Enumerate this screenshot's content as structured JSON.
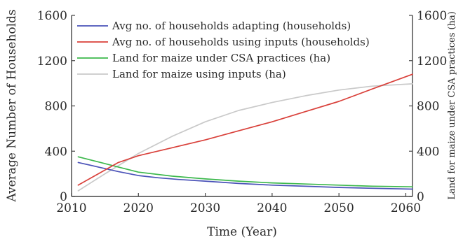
{
  "chart_data": {
    "type": "line",
    "xlabel": "Time (Year)",
    "ylabel_left": "Average Number of Households",
    "ylabel_right": "Land for maize under CSA practices (ha)",
    "xlim": [
      2010,
      2061
    ],
    "ylim_left": [
      0,
      1600
    ],
    "ylim_right": [
      0,
      1600
    ],
    "x_ticks": [
      2010,
      2020,
      2030,
      2040,
      2050,
      2060
    ],
    "y_ticks_left": [
      0,
      400,
      800,
      1200,
      1600
    ],
    "y_ticks_right": [
      0,
      400,
      800,
      1200,
      1600
    ],
    "grid": false,
    "legend_position": "top-left",
    "series": [
      {
        "name": "Avg no. of households adapting (households)",
        "color": "#4a52b8",
        "axis": "left",
        "x": [
          2011,
          2014,
          2017,
          2020,
          2023,
          2026,
          2030,
          2035,
          2040,
          2045,
          2050,
          2055,
          2061
        ],
        "y": [
          300,
          260,
          220,
          185,
          165,
          150,
          135,
          115,
          100,
          90,
          80,
          72,
          65
        ]
      },
      {
        "name": "Avg no. of households using inputs (households)",
        "color": "#d9403a",
        "axis": "left",
        "x": [
          2011,
          2014,
          2017,
          2020,
          2025,
          2030,
          2035,
          2040,
          2045,
          2050,
          2055,
          2061
        ],
        "y": [
          100,
          200,
          300,
          360,
          430,
          500,
          580,
          660,
          750,
          840,
          950,
          1080
        ]
      },
      {
        "name": "Land for maize under CSA practices (ha)",
        "color": "#3cb84c",
        "axis": "right",
        "x": [
          2011,
          2014,
          2017,
          2020,
          2025,
          2030,
          2035,
          2040,
          2045,
          2050,
          2055,
          2061
        ],
        "y": [
          350,
          305,
          260,
          215,
          180,
          155,
          135,
          120,
          110,
          100,
          90,
          85
        ]
      },
      {
        "name": "Land for maize using inputs (ha)",
        "color": "#c9c9c9",
        "axis": "right",
        "x": [
          2011,
          2015,
          2020,
          2025,
          2030,
          2035,
          2040,
          2045,
          2050,
          2055,
          2061
        ],
        "y": [
          50,
          200,
          380,
          530,
          660,
          760,
          830,
          890,
          940,
          975,
          995
        ]
      }
    ]
  }
}
